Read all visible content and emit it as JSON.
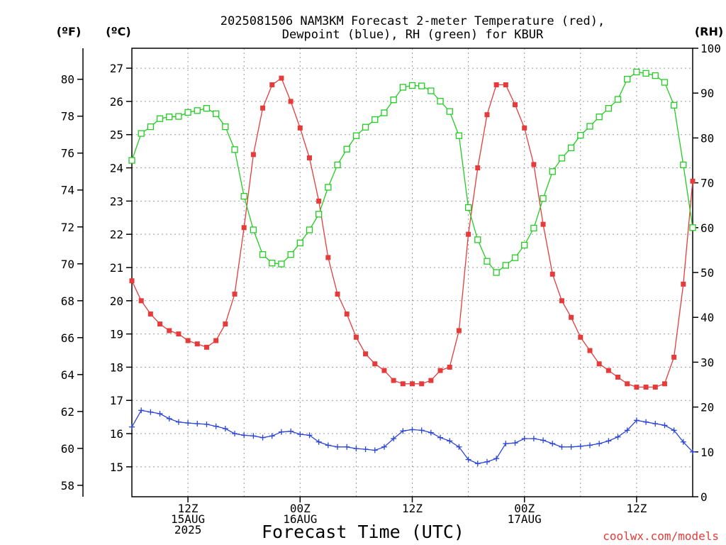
{
  "chart_data": {
    "type": "line",
    "title": "2025081506 NAM3KM Forecast 2-meter Temperature (red),",
    "subtitle": "Dewpoint (blue), RH (green) for KBUR",
    "xlabel": "Forecast Time (UTC)",
    "left_outer_unit": "(ºF)",
    "left_inner_unit": "(ºC)",
    "right_unit": "(RH)",
    "credit": "coolwx.com/models",
    "x_hours_range": [
      0,
      60
    ],
    "celsius_range": [
      14.1,
      27.6
    ],
    "rh_range": [
      0,
      100
    ],
    "fahrenheit_ticks": [
      "58",
      "60",
      "62",
      "64",
      "66",
      "68",
      "70",
      "72",
      "74",
      "76",
      "78",
      "80"
    ],
    "celsius_ticks": [
      "15",
      "16",
      "17",
      "18",
      "19",
      "20",
      "21",
      "22",
      "23",
      "24",
      "25",
      "26",
      "27"
    ],
    "rh_ticks": [
      "0",
      "10",
      "20",
      "30",
      "40",
      "50",
      "60",
      "70",
      "80",
      "90",
      "100"
    ],
    "x_ticks": [
      {
        "hour": 6,
        "lines": [
          "12Z",
          "15AUG",
          "2025"
        ]
      },
      {
        "hour": 18,
        "lines": [
          "00Z",
          "16AUG"
        ]
      },
      {
        "hour": 30,
        "lines": [
          "12Z"
        ]
      },
      {
        "hour": 42,
        "lines": [
          "00Z",
          "17AUG"
        ]
      },
      {
        "hour": 54,
        "lines": [
          "12Z"
        ]
      }
    ],
    "grid": true,
    "series": [
      {
        "name": "Temperature",
        "color": "#e63b3b",
        "marker": "filled-square",
        "axis": "celsius",
        "x": [
          0,
          1,
          2,
          3,
          4,
          5,
          6,
          7,
          8,
          9,
          10,
          11,
          12,
          13,
          14,
          15,
          16,
          17,
          18,
          19,
          20,
          21,
          22,
          23,
          24,
          25,
          26,
          27,
          28,
          29,
          30,
          31,
          32,
          33,
          34,
          35,
          36,
          37,
          38,
          39,
          40,
          41,
          42,
          43,
          44,
          45,
          46,
          47,
          48,
          49,
          50,
          51,
          52,
          53,
          54,
          55,
          56,
          57,
          58,
          59,
          60
        ],
        "values": [
          20.6,
          20.0,
          19.6,
          19.3,
          19.1,
          19.0,
          18.8,
          18.7,
          18.6,
          18.8,
          19.3,
          20.2,
          22.2,
          24.4,
          25.8,
          26.5,
          26.7,
          26.0,
          25.2,
          24.3,
          23.0,
          21.3,
          20.2,
          19.6,
          18.9,
          18.4,
          18.1,
          17.9,
          17.6,
          17.5,
          17.5,
          17.5,
          17.6,
          17.9,
          18.0,
          19.1,
          22.0,
          24.0,
          25.6,
          26.5,
          26.5,
          25.9,
          25.2,
          24.1,
          22.3,
          20.8,
          20.0,
          19.5,
          18.9,
          18.5,
          18.1,
          17.9,
          17.7,
          17.5,
          17.4,
          17.4,
          17.4,
          17.5,
          18.3,
          20.5,
          23.6
        ]
      },
      {
        "name": "Dewpoint",
        "color": "#2b45d8",
        "marker": "cross",
        "axis": "celsius",
        "x": [
          0,
          1,
          2,
          3,
          4,
          5,
          6,
          7,
          8,
          9,
          10,
          11,
          12,
          13,
          14,
          15,
          16,
          17,
          18,
          19,
          20,
          21,
          22,
          23,
          24,
          25,
          26,
          27,
          28,
          29,
          30,
          31,
          32,
          33,
          34,
          35,
          36,
          37,
          38,
          39,
          40,
          41,
          42,
          43,
          44,
          45,
          46,
          47,
          48,
          49,
          50,
          51,
          52,
          53,
          54,
          55,
          56,
          57,
          58,
          59,
          60
        ],
        "values": [
          16.2,
          16.7,
          16.65,
          16.6,
          16.45,
          16.35,
          16.32,
          16.3,
          16.28,
          16.22,
          16.15,
          16.0,
          15.95,
          15.93,
          15.88,
          15.93,
          16.05,
          16.07,
          15.98,
          15.95,
          15.75,
          15.65,
          15.6,
          15.6,
          15.55,
          15.53,
          15.5,
          15.6,
          15.85,
          16.08,
          16.12,
          16.1,
          16.03,
          15.88,
          15.78,
          15.6,
          15.22,
          15.1,
          15.15,
          15.25,
          15.7,
          15.72,
          15.85,
          15.85,
          15.8,
          15.7,
          15.6,
          15.6,
          15.62,
          15.65,
          15.7,
          15.78,
          15.9,
          16.1,
          16.4,
          16.35,
          16.3,
          16.25,
          16.1,
          15.75,
          15.45
        ]
      },
      {
        "name": "RH",
        "color": "#22cc22",
        "marker": "open-square",
        "axis": "rh",
        "x": [
          0,
          1,
          2,
          3,
          4,
          5,
          6,
          7,
          8,
          9,
          10,
          11,
          12,
          13,
          14,
          15,
          16,
          17,
          18,
          19,
          20,
          21,
          22,
          23,
          24,
          25,
          26,
          27,
          28,
          29,
          30,
          31,
          32,
          33,
          34,
          35,
          36,
          37,
          38,
          39,
          40,
          41,
          42,
          43,
          44,
          45,
          46,
          47,
          48,
          49,
          50,
          51,
          52,
          53,
          54,
          55,
          56,
          57,
          58,
          59,
          60
        ],
        "values": [
          75,
          81,
          82.5,
          84.3,
          84.7,
          84.8,
          85.7,
          86.1,
          86.6,
          85.4,
          82.5,
          77.4,
          67,
          59.5,
          54,
          52.1,
          51.9,
          54,
          56.6,
          59.5,
          63,
          69,
          74,
          77.5,
          80.5,
          82.4,
          84.1,
          85.6,
          88.5,
          91.3,
          91.7,
          91.6,
          90.5,
          88.2,
          85.9,
          80.5,
          64.5,
          57.3,
          52.5,
          50,
          51.6,
          53.3,
          56.1,
          59.9,
          66.5,
          72.5,
          75.5,
          77.8,
          80.6,
          82.6,
          84.7,
          86.6,
          88.6,
          93.1,
          94.7,
          94.4,
          93.9,
          92.4,
          87.3,
          74,
          60
        ]
      }
    ]
  }
}
